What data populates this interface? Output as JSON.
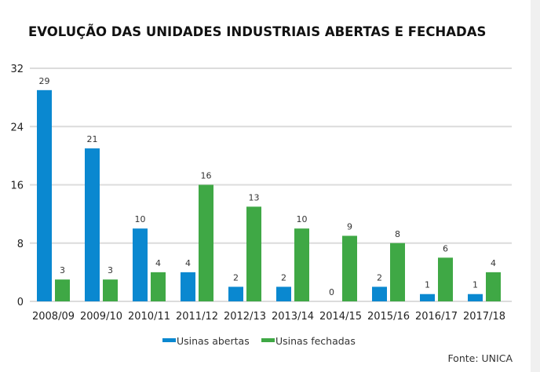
{
  "chart_data": {
    "type": "bar",
    "title": "EVOLUÇÃO DAS UNIDADES INDUSTRIAIS ABERTAS E FECHADAS",
    "categories": [
      "2008/09",
      "2009/10",
      "2010/11",
      "2011/12",
      "2012/13",
      "2013/14",
      "2014/15",
      "2015/16",
      "2016/17",
      "2017/18"
    ],
    "series": [
      {
        "name": "Usinas abertas",
        "color": "#0a88d0",
        "values": [
          29,
          21,
          10,
          4,
          2,
          2,
          0,
          2,
          1,
          1
        ]
      },
      {
        "name": "Usinas fechadas",
        "color": "#3fa845",
        "values": [
          3,
          3,
          4,
          16,
          13,
          10,
          9,
          8,
          6,
          4
        ]
      }
    ],
    "ylim": [
      0,
      32
    ],
    "yticks": [
      0,
      8,
      16,
      24,
      32
    ],
    "grid": true,
    "legend": "bottom-center",
    "xlabel": "",
    "ylabel": "",
    "source": "Fonte: UNICA"
  }
}
